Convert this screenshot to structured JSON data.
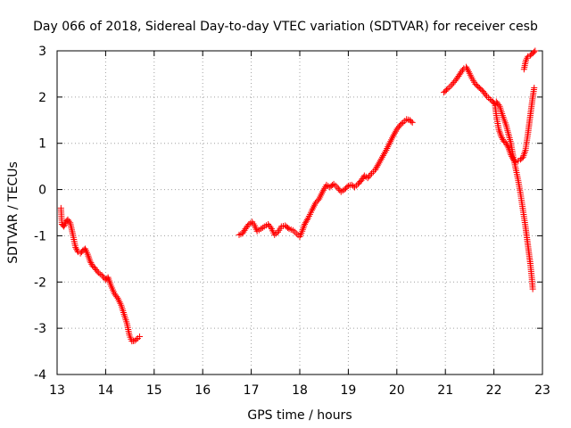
{
  "chart_data": {
    "type": "scatter",
    "title": "Day 066 of 2018, Sidereal Day-to-day VTEC variation (SDTVAR) for receiver cesb",
    "xlabel": "GPS time / hours",
    "ylabel": "SDTVAR / TECUs",
    "xlim": [
      13,
      23
    ],
    "ylim": [
      -4,
      3
    ],
    "xticks": [
      "13",
      "14",
      "15",
      "16",
      "17",
      "18",
      "19",
      "20",
      "21",
      "22",
      "23"
    ],
    "yticks": [
      "-4",
      "-3",
      "-2",
      "-1",
      "0",
      "1",
      "2",
      "3"
    ],
    "grid": true,
    "marker": "+",
    "series": [
      {
        "name": "SDTVAR",
        "color": "#ff0000",
        "segments": [
          [
            [
              13.08,
              -0.4
            ],
            [
              13.1,
              -0.75
            ],
            [
              13.14,
              -0.8
            ],
            [
              13.18,
              -0.7
            ],
            [
              13.22,
              -0.65
            ],
            [
              13.27,
              -0.72
            ],
            [
              13.32,
              -0.95
            ],
            [
              13.38,
              -1.25
            ],
            [
              13.43,
              -1.35
            ],
            [
              13.48,
              -1.38
            ],
            [
              13.53,
              -1.32
            ],
            [
              13.58,
              -1.28
            ],
            [
              13.63,
              -1.4
            ],
            [
              13.68,
              -1.55
            ],
            [
              13.73,
              -1.65
            ],
            [
              13.78,
              -1.7
            ],
            [
              13.85,
              -1.8
            ],
            [
              13.92,
              -1.85
            ],
            [
              14.0,
              -1.95
            ],
            [
              14.05,
              -1.9
            ],
            [
              14.1,
              -2.05
            ],
            [
              14.18,
              -2.25
            ],
            [
              14.25,
              -2.35
            ],
            [
              14.32,
              -2.5
            ],
            [
              14.38,
              -2.7
            ],
            [
              14.44,
              -2.9
            ],
            [
              14.49,
              -3.15
            ],
            [
              14.54,
              -3.28
            ],
            [
              14.6,
              -3.27
            ],
            [
              14.66,
              -3.22
            ],
            [
              14.7,
              -3.18
            ]
          ],
          [
            [
              16.75,
              -0.98
            ],
            [
              16.82,
              -0.95
            ],
            [
              16.88,
              -0.85
            ],
            [
              16.95,
              -0.75
            ],
            [
              17.02,
              -0.7
            ],
            [
              17.07,
              -0.78
            ],
            [
              17.12,
              -0.9
            ],
            [
              17.2,
              -0.85
            ],
            [
              17.27,
              -0.8
            ],
            [
              17.35,
              -0.75
            ],
            [
              17.42,
              -0.85
            ],
            [
              17.48,
              -0.98
            ],
            [
              17.55,
              -0.92
            ],
            [
              17.62,
              -0.8
            ],
            [
              17.7,
              -0.78
            ],
            [
              17.78,
              -0.85
            ],
            [
              17.86,
              -0.88
            ],
            [
              17.93,
              -0.95
            ],
            [
              18.0,
              -1.02
            ],
            [
              18.05,
              -0.9
            ],
            [
              18.1,
              -0.75
            ],
            [
              18.17,
              -0.62
            ],
            [
              18.25,
              -0.45
            ],
            [
              18.32,
              -0.3
            ],
            [
              18.4,
              -0.2
            ],
            [
              18.47,
              -0.05
            ],
            [
              18.55,
              0.1
            ],
            [
              18.62,
              0.05
            ],
            [
              18.7,
              0.12
            ],
            [
              18.77,
              0.05
            ],
            [
              18.85,
              -0.05
            ],
            [
              18.92,
              0.0
            ],
            [
              19.0,
              0.08
            ],
            [
              19.07,
              0.1
            ],
            [
              19.13,
              0.05
            ],
            [
              19.2,
              0.12
            ],
            [
              19.27,
              0.2
            ],
            [
              19.33,
              0.3
            ],
            [
              19.4,
              0.25
            ],
            [
              19.48,
              0.35
            ],
            [
              19.55,
              0.42
            ],
            [
              19.62,
              0.55
            ],
            [
              19.7,
              0.7
            ],
            [
              19.78,
              0.85
            ],
            [
              19.85,
              1.0
            ],
            [
              19.92,
              1.15
            ],
            [
              20.0,
              1.3
            ],
            [
              20.07,
              1.4
            ],
            [
              20.13,
              1.45
            ],
            [
              20.2,
              1.52
            ],
            [
              20.27,
              1.5
            ],
            [
              20.32,
              1.45
            ]
          ],
          [
            [
              20.97,
              2.1
            ],
            [
              21.05,
              2.18
            ],
            [
              21.12,
              2.25
            ],
            [
              21.2,
              2.35
            ],
            [
              21.27,
              2.45
            ],
            [
              21.33,
              2.55
            ],
            [
              21.38,
              2.62
            ],
            [
              21.43,
              2.65
            ],
            [
              21.48,
              2.55
            ],
            [
              21.55,
              2.4
            ],
            [
              21.62,
              2.28
            ],
            [
              21.7,
              2.2
            ],
            [
              21.78,
              2.12
            ],
            [
              21.85,
              2.02
            ],
            [
              21.92,
              1.95
            ],
            [
              21.98,
              1.9
            ],
            [
              22.02,
              1.85
            ],
            [
              22.05,
              1.6
            ],
            [
              22.1,
              1.3
            ],
            [
              22.15,
              1.15
            ],
            [
              22.2,
              1.05
            ],
            [
              22.25,
              1.0
            ],
            [
              22.3,
              0.9
            ],
            [
              22.35,
              0.75
            ],
            [
              22.4,
              0.65
            ],
            [
              22.45,
              0.6
            ],
            [
              22.5,
              0.62
            ],
            [
              22.55,
              0.65
            ],
            [
              22.6,
              0.7
            ],
            [
              22.65,
              0.85
            ],
            [
              22.7,
              1.2
            ],
            [
              22.75,
              1.6
            ],
            [
              22.8,
              2.0
            ],
            [
              22.83,
              2.2
            ]
          ],
          [
            [
              22.05,
              1.9
            ],
            [
              22.12,
              1.8
            ],
            [
              22.18,
              1.6
            ],
            [
              22.25,
              1.4
            ],
            [
              22.3,
              1.2
            ],
            [
              22.35,
              1.0
            ],
            [
              22.4,
              0.7
            ],
            [
              22.45,
              0.45
            ],
            [
              22.5,
              0.2
            ],
            [
              22.55,
              -0.1
            ],
            [
              22.6,
              -0.45
            ],
            [
              22.65,
              -0.8
            ],
            [
              22.7,
              -1.2
            ],
            [
              22.75,
              -1.6
            ],
            [
              22.78,
              -1.9
            ],
            [
              22.8,
              -2.15
            ]
          ],
          [
            [
              22.62,
              2.6
            ],
            [
              22.66,
              2.8
            ],
            [
              22.7,
              2.88
            ],
            [
              22.75,
              2.9
            ],
            [
              22.8,
              2.95
            ],
            [
              22.85,
              3.0
            ]
          ]
        ]
      }
    ]
  }
}
